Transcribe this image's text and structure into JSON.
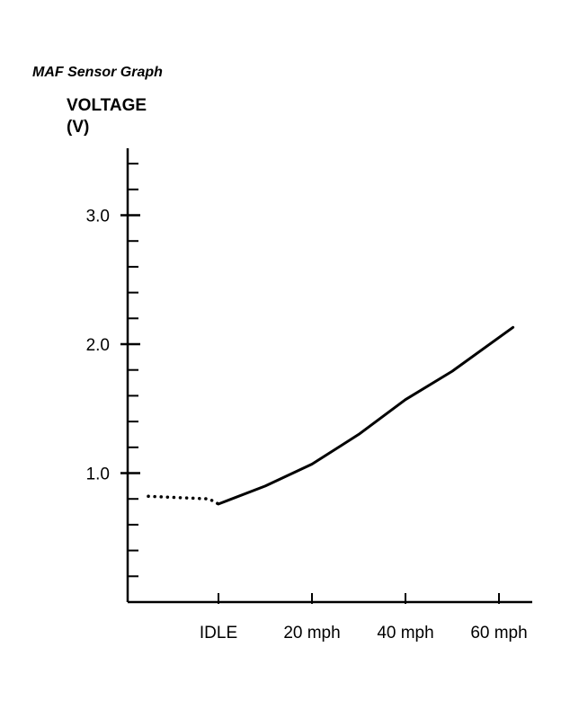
{
  "chart_data": {
    "type": "line",
    "title": "MAF Sensor Graph",
    "ylabel_lines": [
      "VOLTAGE",
      "(V)"
    ],
    "x_ticks": [
      {
        "label": "IDLE",
        "value": 0
      },
      {
        "label": "20 mph",
        "value": 20
      },
      {
        "label": "40 mph",
        "value": 40
      },
      {
        "label": "60 mph",
        "value": 60
      }
    ],
    "y_ticks": [
      {
        "label": "1.0",
        "value": 1.0
      },
      {
        "label": "2.0",
        "value": 2.0
      },
      {
        "label": "3.0",
        "value": 3.0
      }
    ],
    "xlim": [
      -20,
      70
    ],
    "ylim": [
      0,
      3.5
    ],
    "y_minor_step": 0.2,
    "series": [
      {
        "style": "dotted",
        "points": [
          [
            -15,
            0.82
          ],
          [
            -2,
            0.8
          ],
          [
            0,
            0.76
          ]
        ]
      },
      {
        "style": "solid",
        "points": [
          [
            0,
            0.76
          ],
          [
            10,
            0.9
          ],
          [
            20,
            1.07
          ],
          [
            30,
            1.3
          ],
          [
            40,
            1.57
          ],
          [
            50,
            1.79
          ],
          [
            63,
            2.13
          ]
        ]
      }
    ]
  }
}
